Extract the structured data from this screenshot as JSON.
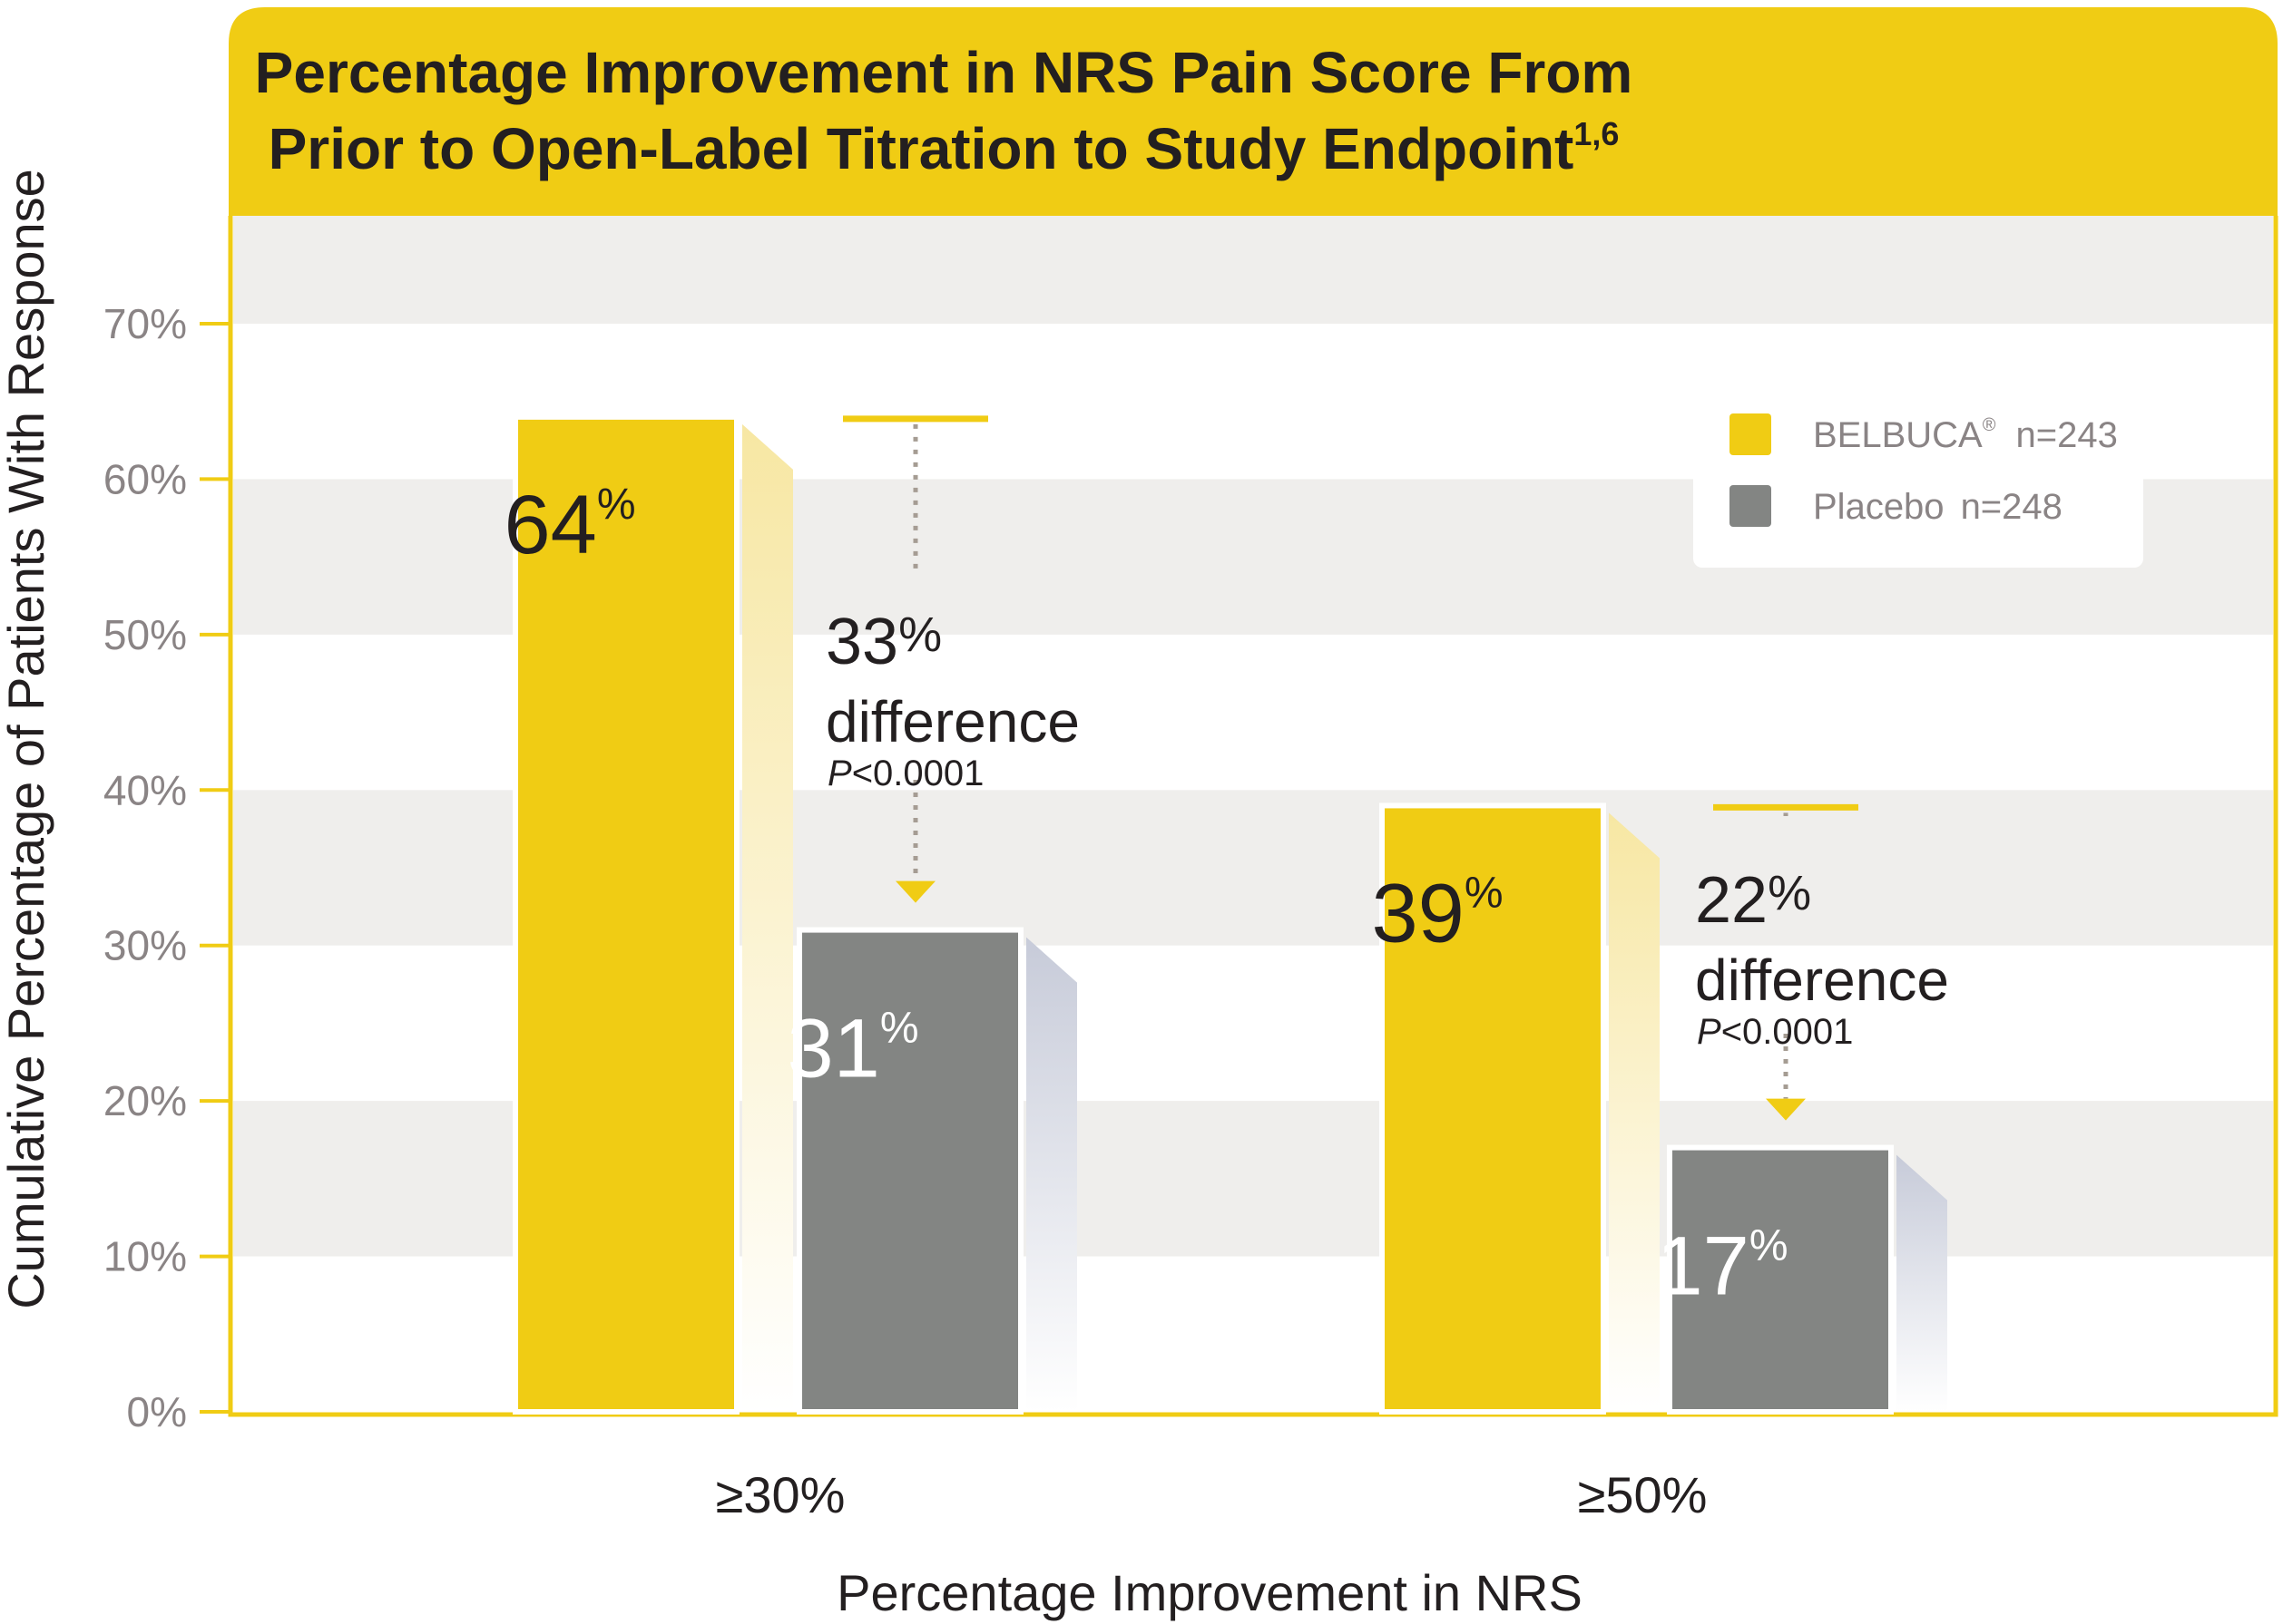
{
  "chart_data": {
    "type": "bar",
    "title_line1": "Percentage Improvement in NRS Pain Score From",
    "title_line2": "Prior to Open-Label Titration to Study Endpoint",
    "title_superscript": "1,6",
    "xlabel": "Percentage Improvement in NRS",
    "ylabel": "Cumulative Percentage of Patients With Response",
    "ylim": [
      0,
      70
    ],
    "yticks": [
      0,
      10,
      20,
      30,
      40,
      50,
      60,
      70
    ],
    "ytick_labels": [
      "0%",
      "10%",
      "20%",
      "30%",
      "40%",
      "50%",
      "60%",
      "70%"
    ],
    "categories": [
      "≥30%",
      "≥50%"
    ],
    "series": [
      {
        "name": "BELBUCA",
        "name_mark": "®",
        "n_label": "n=243",
        "color": "#f0cc14",
        "values": [
          64,
          39
        ],
        "labels": [
          "64",
          "39"
        ]
      },
      {
        "name": "Placebo",
        "n_label": "n=248",
        "color": "#838583",
        "values": [
          31,
          17
        ],
        "labels": [
          "31",
          "17"
        ]
      }
    ],
    "value_unit": "%",
    "differences": [
      {
        "value": "33",
        "unit": "%",
        "word": "difference",
        "p_letter": "P",
        "p_value": "<0.0001"
      },
      {
        "value": "22",
        "unit": "%",
        "word": "difference",
        "p_letter": "P",
        "p_value": "<0.0001"
      }
    ],
    "legend_position": "top-right",
    "grid": "alternating-bands",
    "colors": {
      "header": "#f0cc14",
      "band": "#efeeec",
      "axis": "#f0cc14",
      "shadow_yellow": "#f7e7a3",
      "shadow_gray": "#c7cbd9",
      "connector": "#a59c93"
    }
  }
}
